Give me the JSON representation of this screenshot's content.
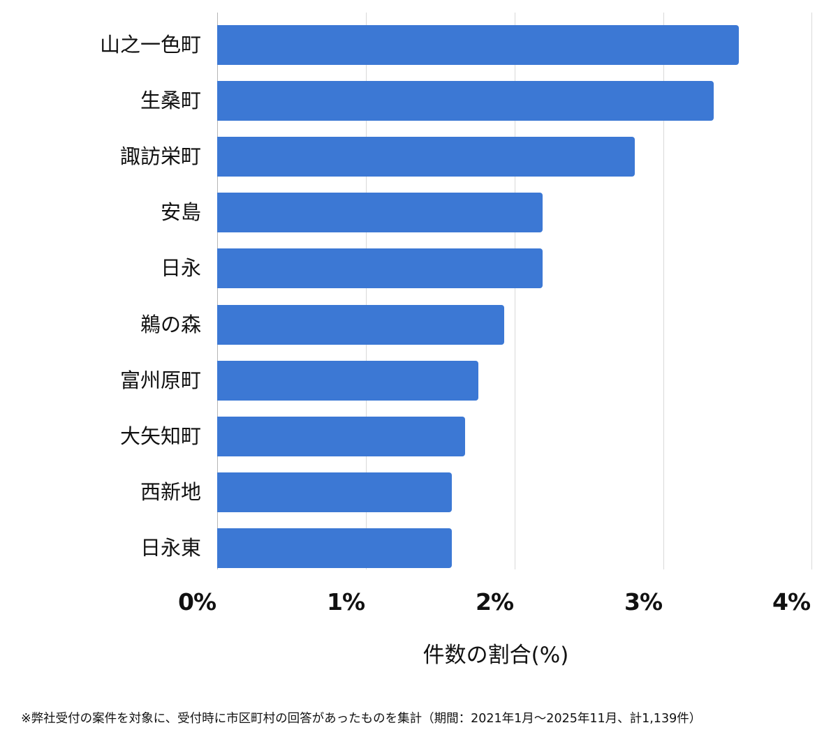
{
  "chart_data": {
    "type": "bar",
    "orientation": "horizontal",
    "title": "",
    "xlabel": "件数の割合(%)",
    "ylabel": "",
    "xlim": [
      0,
      4
    ],
    "x_ticks": [
      "0%",
      "1%",
      "2%",
      "3%",
      "4%"
    ],
    "grid": true,
    "legend": null,
    "bar_color": "#3c78d4",
    "categories": [
      "山之一色町",
      "生桑町",
      "諏訪栄町",
      "安島",
      "日永",
      "鵜の森",
      "富州原町",
      "大矢知町",
      "西新地",
      "日永東"
    ],
    "values": [
      3.51,
      3.34,
      2.81,
      2.19,
      2.19,
      1.93,
      1.76,
      1.67,
      1.58,
      1.58
    ],
    "footnote": "※弊社受付の案件を対象に、受付時に市区町村の回答があったものを集計（期間：2021年1月～2025年11月、計1,139件）"
  }
}
